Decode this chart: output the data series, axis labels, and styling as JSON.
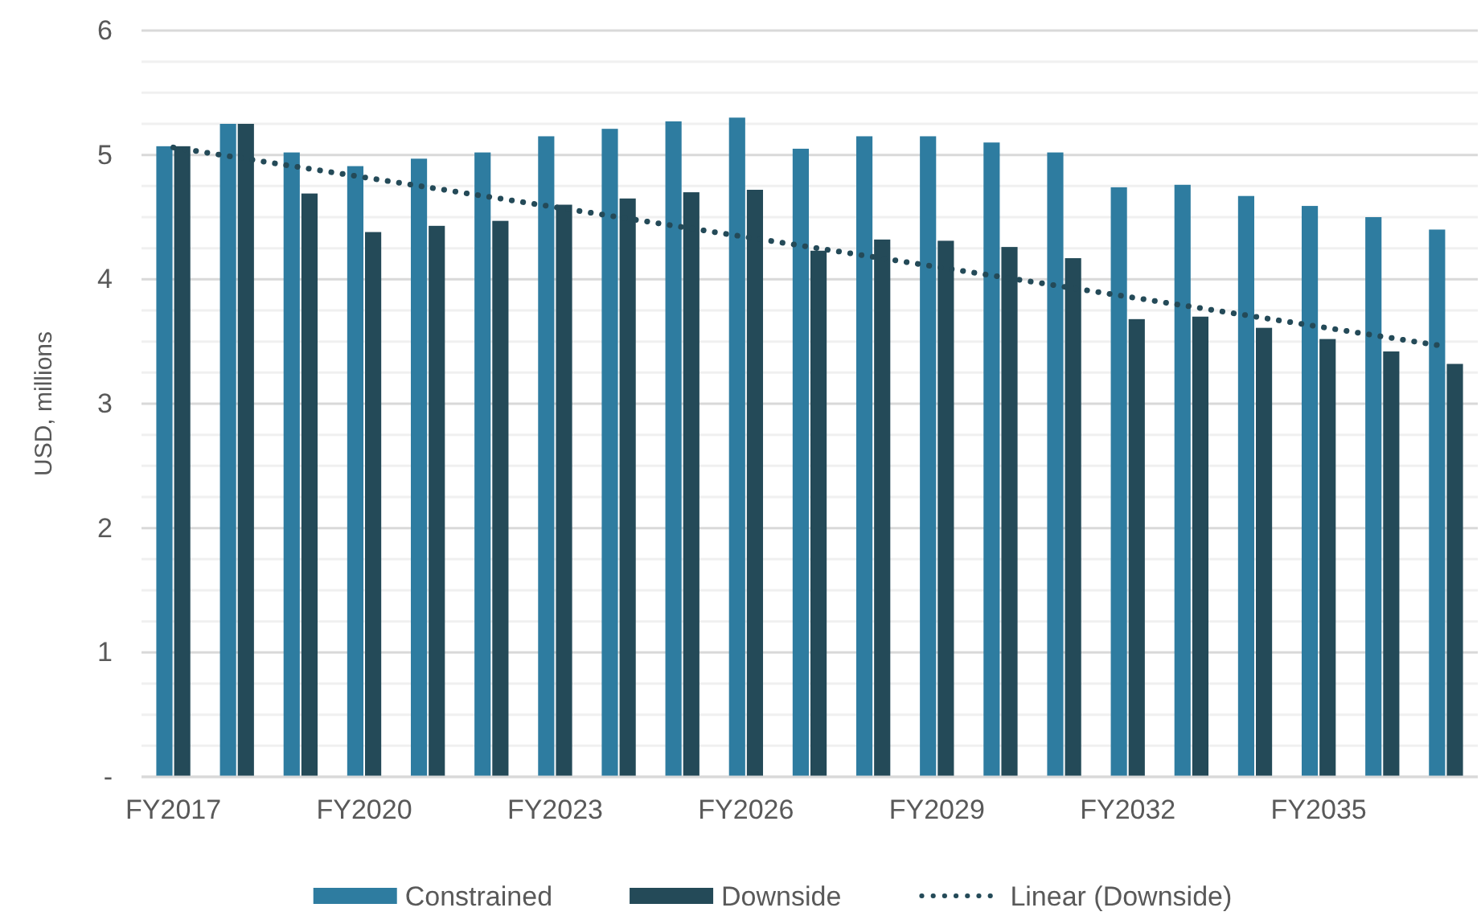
{
  "chart_data": {
    "type": "bar",
    "ylabel": "USD, millions",
    "categories": [
      "FY2017",
      null,
      null,
      "FY2020",
      null,
      null,
      "FY2023",
      null,
      null,
      "FY2026",
      null,
      null,
      "FY2029",
      null,
      null,
      "FY2032",
      null,
      null,
      "FY2035",
      null,
      null
    ],
    "series": [
      {
        "name": "Constrained",
        "color": "#2e7ca0",
        "values": [
          5.07,
          5.25,
          5.02,
          4.91,
          4.97,
          5.02,
          5.15,
          5.21,
          5.27,
          5.3,
          5.05,
          5.15,
          5.15,
          5.1,
          5.02,
          4.74,
          4.76,
          4.67,
          4.59,
          4.5,
          4.4
        ]
      },
      {
        "name": "Downside",
        "color": "#244a58",
        "values": [
          5.07,
          5.25,
          4.69,
          4.38,
          4.43,
          4.47,
          4.6,
          4.65,
          4.7,
          4.72,
          4.23,
          4.32,
          4.31,
          4.26,
          4.17,
          3.68,
          3.7,
          3.61,
          3.52,
          3.42,
          3.32
        ]
      },
      {
        "name": "Linear (Downside)",
        "type": "line",
        "color": "#244a58",
        "line_style": "dotted",
        "marker": "none",
        "values": [
          5.06,
          4.98,
          4.9,
          4.82,
          4.74,
          4.66,
          4.58,
          4.5,
          4.42,
          4.34,
          4.26,
          4.18,
          4.1,
          4.02,
          3.94,
          3.86,
          3.78,
          3.7,
          3.62,
          3.54,
          3.46
        ]
      }
    ],
    "ylim": [
      0,
      6
    ],
    "yticks": [
      {
        "value": 0,
        "label": "-"
      },
      {
        "value": 0.25,
        "label": null
      },
      {
        "value": 0.5,
        "label": null
      },
      {
        "value": 0.75,
        "label": null
      },
      1,
      {
        "value": 1.25,
        "label": null
      },
      {
        "value": 1.5,
        "label": null
      },
      {
        "value": 1.75,
        "label": null
      },
      2,
      {
        "value": 2.25,
        "label": null
      },
      {
        "value": 2.5,
        "label": null
      },
      {
        "value": 2.75,
        "label": null
      },
      3,
      {
        "value": 3.25,
        "label": null
      },
      {
        "value": 3.5,
        "label": null
      },
      {
        "value": 3.75,
        "label": null
      },
      4,
      {
        "value": 4.25,
        "label": null
      },
      {
        "value": 4.5,
        "label": null
      },
      {
        "value": 4.75,
        "label": null
      },
      5,
      {
        "value": 5.25,
        "label": null
      },
      {
        "value": 5.5,
        "label": null
      },
      {
        "value": 5.75,
        "label": null
      },
      6
    ],
    "grid": true,
    "legend": "bottom"
  }
}
